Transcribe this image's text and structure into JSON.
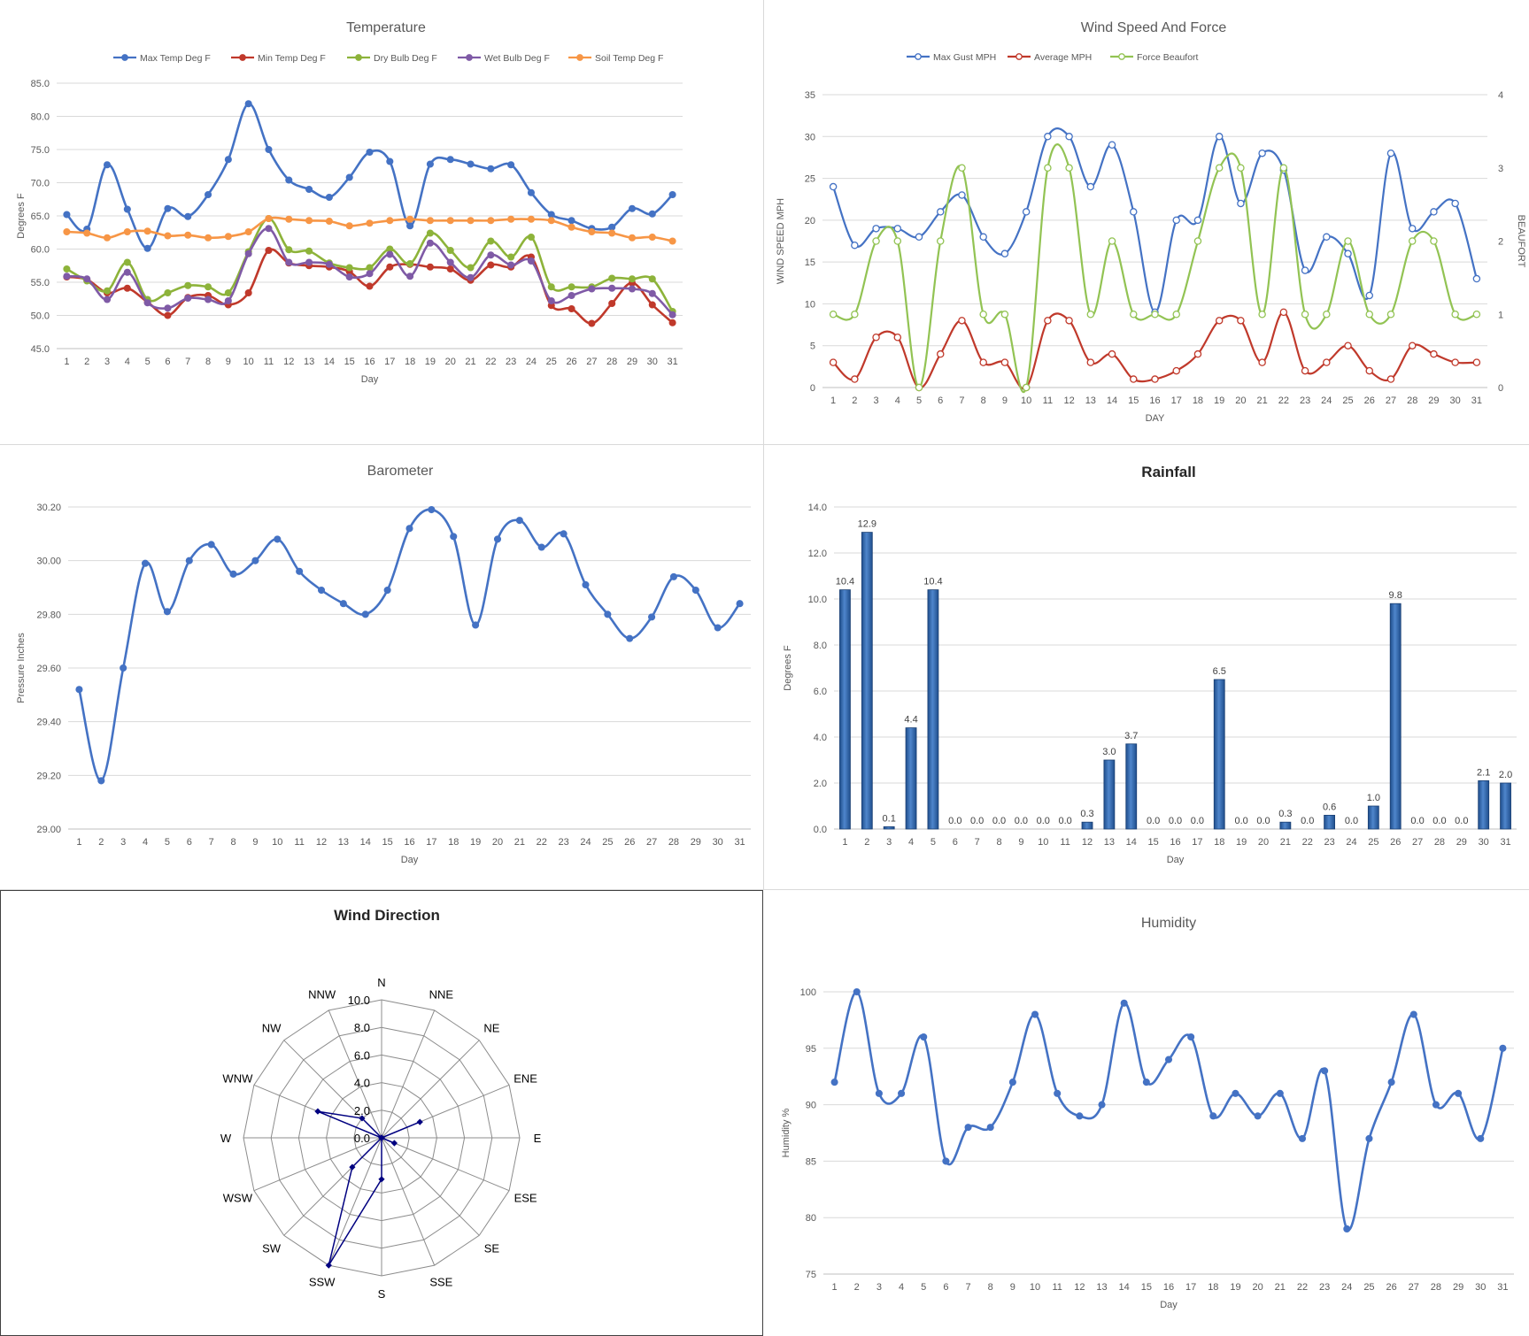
{
  "chart_data": [
    {
      "id": "temp",
      "type": "line",
      "title": "Temperature",
      "xlabel": "Day",
      "ylabel": "Degrees F",
      "ylim": [
        45,
        85
      ],
      "yticks": [
        "45.0",
        "50.0",
        "55.0",
        "60.0",
        "65.0",
        "70.0",
        "75.0",
        "80.0",
        "85.0"
      ],
      "categories": [
        "1",
        "2",
        "3",
        "4",
        "5",
        "6",
        "7",
        "8",
        "9",
        "10",
        "11",
        "12",
        "13",
        "14",
        "15",
        "16",
        "17",
        "18",
        "19",
        "20",
        "21",
        "22",
        "23",
        "24",
        "25",
        "26",
        "27",
        "28",
        "29",
        "30",
        "31"
      ],
      "grid": true,
      "legend": "top",
      "series": [
        {
          "name": "Max Temp Deg F",
          "color": "#4472c4",
          "values": [
            65.2,
            63.0,
            72.7,
            66.0,
            60.1,
            66.1,
            64.9,
            68.2,
            73.5,
            81.9,
            75.0,
            70.4,
            69.0,
            67.8,
            70.8,
            74.6,
            73.2,
            63.5,
            72.8,
            73.5,
            72.8,
            72.1,
            72.7,
            68.5,
            65.2,
            64.3,
            63.1,
            63.3,
            66.1,
            65.3,
            68.2
          ]
        },
        {
          "name": "Min Temp Deg F",
          "color": "#c0392b",
          "values": [
            55.8,
            55.4,
            53.4,
            54.1,
            52.0,
            50.0,
            52.7,
            53.0,
            51.6,
            53.4,
            59.8,
            57.9,
            57.5,
            57.3,
            56.6,
            54.4,
            57.3,
            57.7,
            57.3,
            57.0,
            55.3,
            57.6,
            57.3,
            58.8,
            51.5,
            51.0,
            48.8,
            51.8,
            54.9,
            51.6,
            48.9
          ]
        },
        {
          "name": "Dry Bulb Deg F",
          "color": "#8db33a",
          "values": [
            57.0,
            55.2,
            53.7,
            58.0,
            52.4,
            53.4,
            54.5,
            54.3,
            53.4,
            59.6,
            64.6,
            59.9,
            59.7,
            57.9,
            57.2,
            57.2,
            60.0,
            57.8,
            62.4,
            59.8,
            57.2,
            61.2,
            58.8,
            61.8,
            54.3,
            54.3,
            54.3,
            55.6,
            55.5,
            55.5,
            50.6
          ]
        },
        {
          "name": "Wet Bulb Deg F",
          "color": "#7f5aa6",
          "values": [
            55.9,
            55.5,
            52.4,
            56.5,
            51.9,
            51.1,
            52.6,
            52.4,
            52.2,
            59.3,
            63.1,
            58.0,
            58.0,
            57.7,
            55.8,
            56.3,
            59.2,
            55.9,
            60.9,
            58.0,
            55.7,
            59.1,
            57.6,
            58.2,
            52.2,
            53.0,
            54.0,
            54.1,
            54.0,
            53.3,
            50.1
          ]
        },
        {
          "name": "Soil Temp Deg F",
          "color": "#f79646",
          "values": [
            62.6,
            62.4,
            61.7,
            62.6,
            62.7,
            62.0,
            62.1,
            61.7,
            61.9,
            62.6,
            64.6,
            64.5,
            64.3,
            64.2,
            63.5,
            63.9,
            64.3,
            64.5,
            64.3,
            64.3,
            64.3,
            64.3,
            64.5,
            64.5,
            64.3,
            63.3,
            62.6,
            62.4,
            61.7,
            61.8,
            61.2
          ]
        }
      ]
    },
    {
      "id": "wind",
      "type": "line",
      "title": "Wind Speed And Force",
      "xlabel": "DAY",
      "ylabel": "WIND SPEED MPH",
      "y2label": "BEAUFORT",
      "ylim": [
        0,
        35
      ],
      "y2lim": [
        0,
        4
      ],
      "yticks": [
        "0",
        "5",
        "10",
        "15",
        "20",
        "25",
        "30",
        "35"
      ],
      "y2ticks": [
        "0",
        "1",
        "2",
        "3",
        "4"
      ],
      "categories": [
        "1",
        "2",
        "3",
        "4",
        "5",
        "6",
        "7",
        "8",
        "9",
        "10",
        "11",
        "12",
        "13",
        "14",
        "15",
        "16",
        "17",
        "18",
        "19",
        "20",
        "21",
        "22",
        "23",
        "24",
        "25",
        "26",
        "27",
        "28",
        "29",
        "30",
        "31"
      ],
      "grid": true,
      "legend": "top",
      "series": [
        {
          "name": "Max Gust MPH",
          "axis": "left",
          "color": "#4472c4",
          "values": [
            24,
            17,
            19,
            19,
            18,
            21,
            23,
            18,
            16,
            21,
            30,
            30,
            24,
            29,
            21,
            9,
            20,
            20,
            30,
            22,
            28,
            26,
            14,
            18,
            16,
            11,
            28,
            19,
            21,
            22,
            13
          ]
        },
        {
          "name": "Average MPH",
          "axis": "left",
          "color": "#c0392b",
          "values": [
            3,
            1,
            6,
            6,
            0,
            4,
            8,
            3,
            3,
            0,
            8,
            8,
            3,
            4,
            1,
            1,
            2,
            4,
            8,
            8,
            3,
            9,
            2,
            3,
            5,
            2,
            1,
            5,
            4,
            3,
            3
          ]
        },
        {
          "name": "Force Beaufort",
          "axis": "right",
          "color": "#92c353",
          "values": [
            1,
            1,
            2,
            2,
            0,
            2,
            3,
            1,
            1,
            0,
            3,
            3,
            1,
            2,
            1,
            1,
            1,
            2,
            3,
            3,
            1,
            3,
            1,
            1,
            2,
            1,
            1,
            2,
            2,
            1,
            1
          ]
        }
      ]
    },
    {
      "id": "baro",
      "type": "line",
      "title": "Barometer",
      "xlabel": "Day",
      "ylabel": "Pressure Inches",
      "ylim": [
        29.0,
        30.2
      ],
      "yticks": [
        "29.00",
        "29.20",
        "29.40",
        "29.60",
        "29.80",
        "30.00",
        "30.20"
      ],
      "categories": [
        "1",
        "2",
        "3",
        "4",
        "5",
        "6",
        "7",
        "8",
        "9",
        "10",
        "11",
        "12",
        "13",
        "14",
        "15",
        "16",
        "17",
        "18",
        "19",
        "20",
        "21",
        "22",
        "23",
        "24",
        "25",
        "26",
        "27",
        "28",
        "29",
        "30",
        "31"
      ],
      "grid": true,
      "series": [
        {
          "name": "",
          "color": "#4472c4",
          "values": [
            29.52,
            29.18,
            29.6,
            29.99,
            29.81,
            30.0,
            30.06,
            29.95,
            30.0,
            30.08,
            29.96,
            29.89,
            29.84,
            29.8,
            29.89,
            30.12,
            30.19,
            30.09,
            29.76,
            30.08,
            30.15,
            30.05,
            30.1,
            29.91,
            29.8,
            29.71,
            29.79,
            29.94,
            29.89,
            29.75,
            29.84
          ]
        }
      ]
    },
    {
      "id": "rain",
      "type": "bar",
      "title": "Rainfall",
      "xlabel": "Day",
      "ylabel": "Degrees F",
      "ylim": [
        0,
        14
      ],
      "yticks": [
        "0.0",
        "2.0",
        "4.0",
        "6.0",
        "8.0",
        "10.0",
        "12.0",
        "14.0"
      ],
      "categories": [
        "1",
        "2",
        "3",
        "4",
        "5",
        "6",
        "7",
        "8",
        "9",
        "10",
        "11",
        "12",
        "13",
        "14",
        "15",
        "16",
        "17",
        "18",
        "19",
        "20",
        "21",
        "22",
        "23",
        "24",
        "25",
        "26",
        "27",
        "28",
        "29",
        "30",
        "31"
      ],
      "grid": true,
      "values": [
        10.4,
        12.9,
        0.1,
        4.4,
        10.4,
        0.0,
        0.0,
        0.0,
        0.0,
        0.0,
        0.0,
        0.3,
        3.0,
        3.7,
        0.0,
        0.0,
        0.0,
        6.5,
        0.0,
        0.0,
        0.3,
        0.0,
        0.6,
        0.0,
        1.0,
        9.8,
        0.0,
        0.0,
        0.0,
        2.1,
        2.0
      ],
      "labels": [
        "10.4",
        "12.9",
        "0.1",
        "4.4",
        "10.4",
        "0.0",
        "0.0",
        "0.0",
        "0.0",
        "0.0",
        "0.0",
        "0.3",
        "3.0",
        "3.7",
        "0.0",
        "0.0",
        "0.0",
        "6.5",
        "0.0",
        "0.0",
        "0.3",
        "0.0",
        "0.6",
        "0.0",
        "1.0",
        "9.8",
        "0.0",
        "0.0",
        "0.0",
        "2.1",
        "2.0"
      ],
      "color": "#2e6ab8"
    },
    {
      "id": "dir",
      "type": "radar",
      "title": "Wind Direction",
      "directions": [
        "N",
        "NNE",
        "NE",
        "ENE",
        "E",
        "ESE",
        "SE",
        "SSE",
        "S",
        "SSW",
        "SW",
        "WSW",
        "W",
        "WNW",
        "NW",
        "NNW"
      ],
      "rlim": [
        0,
        10
      ],
      "rticks": [
        "0.0",
        "2.0",
        "4.0",
        "6.0",
        "8.0",
        "10.0"
      ],
      "values": [
        0,
        0,
        0,
        3,
        0,
        1,
        0,
        0,
        3,
        10,
        3,
        0,
        0,
        5,
        2,
        0
      ],
      "color": "#000080"
    },
    {
      "id": "hum",
      "type": "line",
      "title": "Humidity",
      "xlabel": "Day",
      "ylabel": "Humidity %",
      "ylim": [
        75,
        100
      ],
      "yticks": [
        "75",
        "80",
        "85",
        "90",
        "95",
        "100"
      ],
      "categories": [
        "1",
        "2",
        "3",
        "4",
        "5",
        "6",
        "7",
        "8",
        "9",
        "10",
        "11",
        "12",
        "13",
        "14",
        "15",
        "16",
        "17",
        "18",
        "19",
        "20",
        "21",
        "22",
        "23",
        "24",
        "25",
        "26",
        "27",
        "28",
        "29",
        "30",
        "31"
      ],
      "grid": true,
      "series": [
        {
          "name": "",
          "color": "#4472c4",
          "values": [
            92,
            100,
            91,
            91,
            96,
            85,
            88,
            88,
            92,
            98,
            91,
            89,
            90,
            99,
            92,
            94,
            96,
            89,
            91,
            89,
            91,
            87,
            93,
            79,
            87,
            92,
            98,
            90,
            91,
            87,
            95
          ]
        }
      ]
    }
  ]
}
